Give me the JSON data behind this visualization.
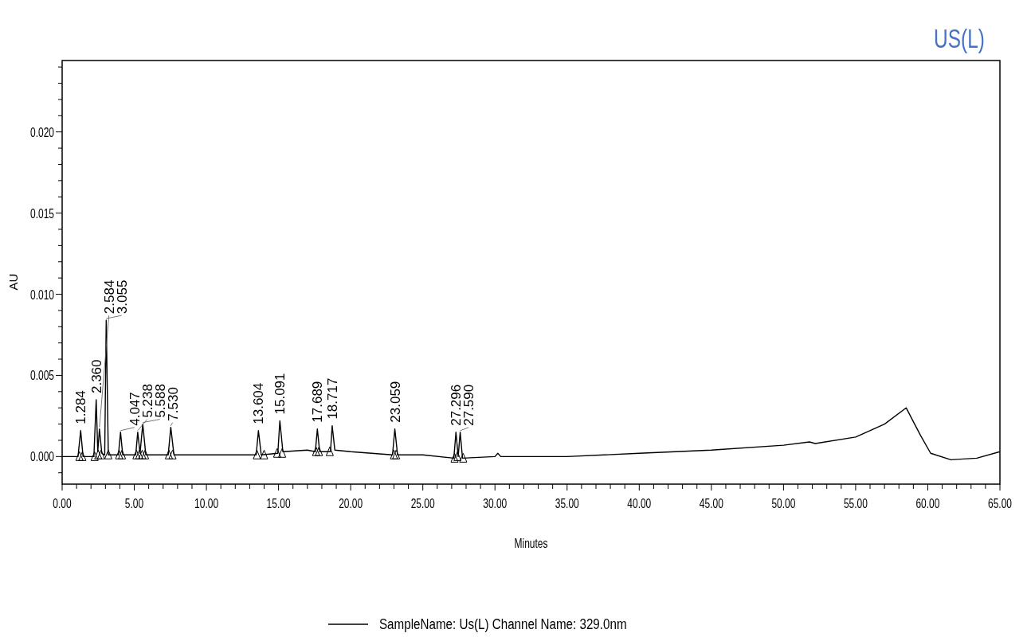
{
  "chart_data": {
    "type": "line",
    "xlabel": "Minutes",
    "ylabel": "AU",
    "legend": "bottom",
    "grid": false,
    "annotations": [
      "US(L)",
      {
        "text": "1.284",
        "x": 1.284,
        "y": 0.0016
      },
      {
        "text": "2.360",
        "x": 2.36,
        "y": 0.0035
      },
      {
        "text": "2.584",
        "x": 2.584,
        "y": 0.0017
      },
      {
        "text": "3.055",
        "x": 3.055,
        "y": 0.0084
      },
      {
        "text": "4.047",
        "x": 4.047,
        "y": 0.0015
      },
      {
        "text": "5.238",
        "x": 5.238,
        "y": 0.0015
      },
      {
        "text": "5.588",
        "x": 5.588,
        "y": 0.002
      },
      {
        "text": "7.530",
        "x": 7.53,
        "y": 0.0018
      },
      {
        "text": "13.604",
        "x": 13.604,
        "y": 0.0016
      },
      {
        "text": "15.091",
        "x": 15.091,
        "y": 0.0022
      },
      {
        "text": "17.689",
        "x": 17.689,
        "y": 0.0017
      },
      {
        "text": "18.717",
        "x": 18.717,
        "y": 0.0019
      },
      {
        "text": "23.059",
        "x": 23.059,
        "y": 0.0017
      },
      {
        "text": "27.296",
        "x": 27.296,
        "y": 0.0015
      },
      {
        "text": "27.590",
        "x": 27.59,
        "y": 0.0015
      }
    ],
    "xlim": [
      0,
      65
    ],
    "ylim": [
      -0.0017,
      0.0244
    ],
    "xticks": [
      {
        "value": 0,
        "label": "0.00"
      },
      {
        "value": 1,
        "label": null
      },
      {
        "value": 2,
        "label": null
      },
      {
        "value": 3,
        "label": null
      },
      {
        "value": 4,
        "label": null
      },
      {
        "value": 5,
        "label": "5.00"
      },
      {
        "value": 6,
        "label": null
      },
      {
        "value": 7,
        "label": null
      },
      {
        "value": 8,
        "label": null
      },
      {
        "value": 9,
        "label": null
      },
      {
        "value": 10,
        "label": "10.00"
      },
      {
        "value": 11,
        "label": null
      },
      {
        "value": 12,
        "label": null
      },
      {
        "value": 13,
        "label": null
      },
      {
        "value": 14,
        "label": null
      },
      {
        "value": 15,
        "label": "15.00"
      },
      {
        "value": 16,
        "label": null
      },
      {
        "value": 17,
        "label": null
      },
      {
        "value": 18,
        "label": null
      },
      {
        "value": 19,
        "label": null
      },
      {
        "value": 20,
        "label": "20.00"
      },
      {
        "value": 21,
        "label": null
      },
      {
        "value": 22,
        "label": null
      },
      {
        "value": 23,
        "label": null
      },
      {
        "value": 24,
        "label": null
      },
      {
        "value": 25,
        "label": "25.00"
      },
      {
        "value": 26,
        "label": null
      },
      {
        "value": 27,
        "label": null
      },
      {
        "value": 28,
        "label": null
      },
      {
        "value": 29,
        "label": null
      },
      {
        "value": 30,
        "label": "30.00"
      },
      {
        "value": 31,
        "label": null
      },
      {
        "value": 32,
        "label": null
      },
      {
        "value": 33,
        "label": null
      },
      {
        "value": 34,
        "label": null
      },
      {
        "value": 35,
        "label": "35.00"
      },
      {
        "value": 36,
        "label": null
      },
      {
        "value": 37,
        "label": null
      },
      {
        "value": 38,
        "label": null
      },
      {
        "value": 39,
        "label": null
      },
      {
        "value": 40,
        "label": "40.00"
      },
      {
        "value": 41,
        "label": null
      },
      {
        "value": 42,
        "label": null
      },
      {
        "value": 43,
        "label": null
      },
      {
        "value": 44,
        "label": null
      },
      {
        "value": 45,
        "label": "45.00"
      },
      {
        "value": 46,
        "label": null
      },
      {
        "value": 47,
        "label": null
      },
      {
        "value": 48,
        "label": null
      },
      {
        "value": 49,
        "label": null
      },
      {
        "value": 50,
        "label": "50.00"
      },
      {
        "value": 51,
        "label": null
      },
      {
        "value": 52,
        "label": null
      },
      {
        "value": 53,
        "label": null
      },
      {
        "value": 54,
        "label": null
      },
      {
        "value": 55,
        "label": "55.00"
      },
      {
        "value": 56,
        "label": null
      },
      {
        "value": 57,
        "label": null
      },
      {
        "value": 58,
        "label": null
      },
      {
        "value": 59,
        "label": null
      },
      {
        "value": 60,
        "label": "60.00"
      },
      {
        "value": 61,
        "label": null
      },
      {
        "value": 62,
        "label": null
      },
      {
        "value": 63,
        "label": null
      },
      {
        "value": 64,
        "label": null
      },
      {
        "value": 65,
        "label": "65.00"
      }
    ],
    "yticks": [
      {
        "value": -0.001,
        "label": null
      },
      {
        "value": 0,
        "label": "0.000"
      },
      {
        "value": 0.001,
        "label": null
      },
      {
        "value": 0.002,
        "label": null
      },
      {
        "value": 0.003,
        "label": null
      },
      {
        "value": 0.004,
        "label": null
      },
      {
        "value": 0.005,
        "label": "0.005"
      },
      {
        "value": 0.006,
        "label": null
      },
      {
        "value": 0.007,
        "label": null
      },
      {
        "value": 0.008,
        "label": null
      },
      {
        "value": 0.009,
        "label": null
      },
      {
        "value": 0.01,
        "label": "0.010"
      },
      {
        "value": 0.011,
        "label": null
      },
      {
        "value": 0.012,
        "label": null
      },
      {
        "value": 0.013,
        "label": null
      },
      {
        "value": 0.014,
        "label": null
      },
      {
        "value": 0.015,
        "label": "0.015"
      },
      {
        "value": 0.016,
        "label": null
      },
      {
        "value": 0.017,
        "label": null
      },
      {
        "value": 0.018,
        "label": null
      },
      {
        "value": 0.019,
        "label": null
      },
      {
        "value": 0.02,
        "label": "0.020"
      },
      {
        "value": 0.021,
        "label": null
      },
      {
        "value": 0.022,
        "label": null
      },
      {
        "value": 0.023,
        "label": null
      },
      {
        "value": 0.024,
        "label": null
      }
    ],
    "series": [
      {
        "name": "SampleName: Us(L) Channel Name: 329.0nm",
        "color": "#000000",
        "type": "line",
        "marker": "none",
        "line_style": "solid",
        "x": [
          0,
          1.1,
          1.284,
          1.45,
          2.2,
          2.36,
          2.47,
          2.584,
          2.75,
          2.95,
          3.055,
          3.2,
          3.9,
          4.047,
          4.2,
          5.1,
          5.238,
          5.4,
          5.588,
          5.8,
          7.35,
          7.53,
          7.75,
          10,
          13.45,
          13.604,
          13.8,
          14.95,
          15.091,
          15.3,
          17,
          17.55,
          17.689,
          17.85,
          18.6,
          18.717,
          18.9,
          20,
          22.9,
          23.059,
          23.25,
          25,
          27.15,
          27.296,
          27.45,
          27.59,
          27.75,
          30,
          30.2,
          30.4,
          35,
          40,
          45,
          50,
          51.8,
          52.2,
          55,
          57,
          58.5,
          59.5,
          60.2,
          61.6,
          63.4,
          65
        ],
        "values": [
          0,
          0,
          0.0016,
          0,
          0,
          0.0035,
          0.0003,
          0.0017,
          0.0002,
          0.0001,
          0.0084,
          0.0001,
          0.0001,
          0.0015,
          0.0001,
          0.0001,
          0.0015,
          0.0002,
          0.002,
          0.0001,
          0.0001,
          0.0018,
          0.0001,
          0.0001,
          0.0001,
          0.0016,
          0.0001,
          0.0002,
          0.0022,
          0.0003,
          0.0004,
          0.0003,
          0.0017,
          0.0003,
          0.0003,
          0.0019,
          0.0004,
          0.0003,
          0.0001,
          0.0017,
          0.0001,
          0.0001,
          -0.0001,
          0.0015,
          0,
          0.0015,
          -0.0001,
          0,
          0.0002,
          0,
          0,
          0.0002,
          0.0004,
          0.0007,
          0.0009,
          0.0008,
          0.0012,
          0.002,
          0.003,
          0.0013,
          0.0002,
          -0.0002,
          -0.0001,
          0.0003
        ]
      },
      {
        "color": "#000000",
        "type": "scatter",
        "marker": "triangle",
        "x": [
          1.2,
          1.4,
          2.25,
          2.5,
          2.7,
          3.2,
          3.95,
          4.15,
          5.15,
          5.35,
          5.55,
          5.75,
          7.4,
          7.65,
          13.5,
          14.0,
          14.9,
          15.25,
          17.6,
          17.8,
          18.55,
          23.0,
          23.15,
          27.2,
          27.4,
          27.8
        ],
        "values": [
          0,
          0,
          0,
          0.0001,
          0.0001,
          0.0001,
          0.0001,
          0.0001,
          0.0001,
          0.0001,
          0.0001,
          0.0001,
          0.0001,
          0.0001,
          0.0001,
          0.0001,
          0.0002,
          0.0002,
          0.0003,
          0.0003,
          0.0003,
          0.0001,
          0.0001,
          -0.0001,
          0,
          -0.0001
        ]
      }
    ]
  }
}
